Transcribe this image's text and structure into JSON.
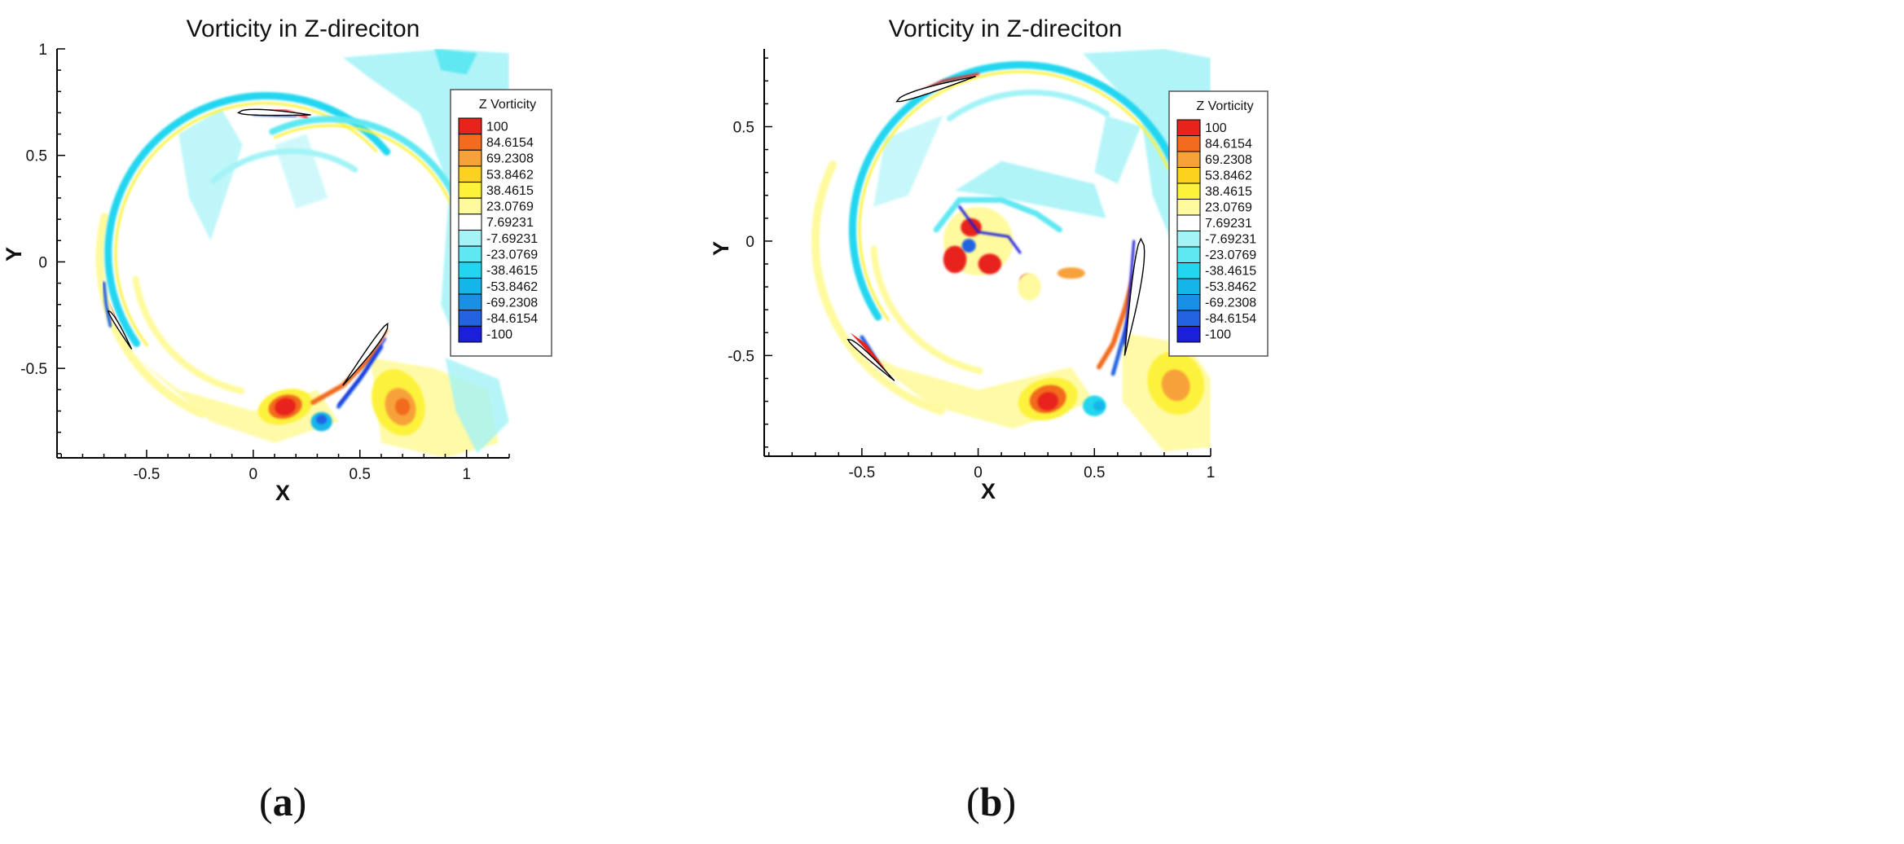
{
  "chart_data": [
    {
      "type": "heatmap",
      "panel_label": "a",
      "title": "Vorticity in Z-direciton",
      "xlabel": "X",
      "ylabel": "Y",
      "xlim": [
        -0.92,
        1.2
      ],
      "ylim": [
        -0.92,
        1.0
      ],
      "xticks": [
        -0.5,
        0,
        0.5,
        1
      ],
      "xtick_labels": [
        "-0.5",
        "0",
        "0.5",
        "1"
      ],
      "yticks": [
        -0.5,
        0,
        0.5,
        1
      ],
      "ytick_labels": [
        "-0.5",
        "0",
        "0.5",
        "1"
      ],
      "legend_title": "Z Vorticity",
      "legend_position": "right",
      "blades": [
        {
          "nose": [
            -0.68,
            -0.23
          ],
          "tail": [
            -0.57,
            -0.41
          ]
        },
        {
          "nose": [
            -0.07,
            0.7
          ],
          "tail": [
            0.27,
            0.69
          ]
        },
        {
          "nose": [
            0.63,
            -0.29
          ],
          "tail": [
            0.42,
            -0.58
          ]
        }
      ]
    },
    {
      "type": "heatmap",
      "panel_label": "b",
      "title": "Vorticity in Z-direciton",
      "xlabel": "X",
      "ylabel": "Y",
      "xlim": [
        -0.92,
        1.0
      ],
      "ylim": [
        -0.94,
        0.84
      ],
      "xticks": [
        -0.5,
        0,
        0.5,
        1
      ],
      "xtick_labels": [
        "-0.5",
        "0",
        "0.5",
        "1"
      ],
      "yticks": [
        -0.5,
        0,
        0.5
      ],
      "ytick_labels": [
        "-0.5",
        "0",
        "0.5"
      ],
      "legend_title": "Z Vorticity",
      "legend_position": "right",
      "blades": [
        {
          "nose": [
            -0.35,
            0.61
          ],
          "tail": [
            -0.01,
            0.72
          ]
        },
        {
          "nose": [
            0.7,
            0.01
          ],
          "tail": [
            0.63,
            -0.5
          ]
        },
        {
          "nose": [
            -0.56,
            -0.43
          ],
          "tail": [
            -0.36,
            -0.61
          ]
        }
      ]
    }
  ],
  "legend": {
    "levels": [
      "100",
      "84.6154",
      "69.2308",
      "53.8462",
      "38.4615",
      "23.0769",
      "7.69231",
      "-7.69231",
      "-23.0769",
      "-38.4615",
      "-53.8462",
      "-69.2308",
      "-84.6154",
      "-100"
    ],
    "colors": [
      "#e8241a",
      "#f26b1f",
      "#f7a13a",
      "#fcd21f",
      "#fdf23a",
      "#fffa9e",
      "#ffffff",
      "#a3f3f7",
      "#5fe8f2",
      "#21d6ef",
      "#14b6ea",
      "#1a8fe6",
      "#2363e2",
      "#1a1fd9"
    ]
  }
}
